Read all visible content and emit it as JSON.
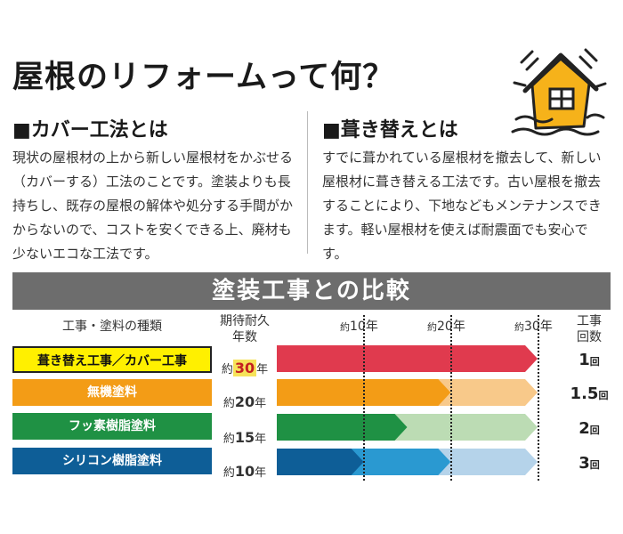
{
  "title": "屋根のリフォームって何？",
  "sections": [
    {
      "heading": "■カバー工法とは",
      "body": "現状の屋根材の上から新しい屋根材をかぶせる（カバーする）工法のことです。塗装よりも長持ちし、既存の屋根の解体や処分する手間がかからないので、コストを安くできる上、廃材も少ないエコな工法です。"
    },
    {
      "heading": "■葺き替えとは",
      "body": "すでに葺かれている屋根材を撤去して、新しい屋根材に葺き替える工法です。古い屋根を撤去することにより、下地などもメンテナンスできます。軽い屋根材を使えば耐震面でも安心です。"
    }
  ],
  "icon": "shaking-house-icon",
  "comparison": {
    "banner": "塗装工事との比較",
    "col_type": "工事・塗料の種類",
    "col_years": "期待耐久\n年数",
    "col_count": "工事\n回数",
    "ticks": [
      {
        "prefix": "約",
        "value": "10",
        "unit": "年"
      },
      {
        "prefix": "約",
        "value": "20",
        "unit": "年"
      },
      {
        "prefix": "約",
        "value": "30",
        "unit": "年"
      }
    ]
  },
  "chart_data": {
    "type": "bar",
    "categories": [
      "葺き替え工事／カバー工事",
      "無機塗料",
      "フッ素樹脂塗料",
      "シリコン樹脂塗料"
    ],
    "values": [
      30,
      20,
      15,
      10
    ],
    "repeat_span": [
      30,
      30,
      30,
      30
    ],
    "counts": [
      "1",
      "1.5",
      "2",
      "3"
    ],
    "count_unit": "回",
    "years_prefix": "約",
    "years_unit": "年",
    "xlim": [
      0,
      30
    ],
    "colors": {
      "dark": [
        "#e03a4e",
        "#f39c16",
        "#1f9144",
        "#0e5e97"
      ],
      "light": [
        "#e03a4e",
        "#f8c98a",
        "#bcdcb4",
        "#b5d3ea"
      ],
      "mid": [
        "",
        "",
        "",
        "#2a99d1"
      ]
    },
    "label_colors": [
      "#fff000",
      "#f39c16",
      "#1f9144",
      "#0e5e97"
    ]
  }
}
